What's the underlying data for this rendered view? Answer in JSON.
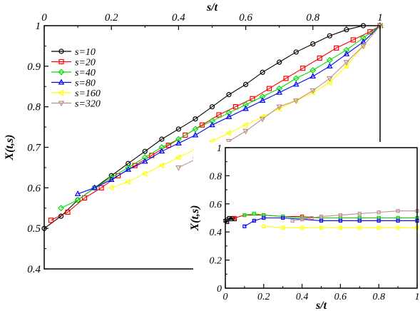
{
  "chart_data": [
    {
      "type": "scatter",
      "panel": "main",
      "xlabel": "s/t",
      "ylabel": "X(t,s)",
      "xlim": [
        0,
        1
      ],
      "ylim": [
        0.4,
        1
      ],
      "x_ticks": [
        "0",
        "0.2",
        "0.4",
        "0.6",
        "0.8",
        "1"
      ],
      "y_ticks": [
        "0.4",
        "0.5",
        "0.6",
        "0.7",
        "0.8",
        "0.9",
        "1"
      ],
      "x_axis_position": "top",
      "grid": false,
      "legend_position": "top-left",
      "series": [
        {
          "name": "s=10",
          "color": "#000000",
          "marker": "circle",
          "x": [
            0.0,
            0.05,
            0.1,
            0.15,
            0.2,
            0.25,
            0.3,
            0.35,
            0.4,
            0.45,
            0.5,
            0.55,
            0.6,
            0.65,
            0.7,
            0.75,
            0.8,
            0.85,
            0.9,
            0.95,
            1.0
          ],
          "y": [
            0.5,
            0.53,
            0.57,
            0.6,
            0.63,
            0.66,
            0.69,
            0.72,
            0.745,
            0.77,
            0.8,
            0.83,
            0.855,
            0.885,
            0.91,
            0.935,
            0.955,
            0.975,
            0.99,
            1.0,
            1.0
          ]
        },
        {
          "name": "s=20",
          "color": "#ff0000",
          "marker": "square",
          "x": [
            0.02,
            0.07,
            0.12,
            0.17,
            0.22,
            0.27,
            0.32,
            0.37,
            0.42,
            0.47,
            0.52,
            0.57,
            0.62,
            0.67,
            0.72,
            0.77,
            0.82,
            0.87,
            0.92,
            0.97,
            1.0
          ],
          "y": [
            0.52,
            0.54,
            0.575,
            0.6,
            0.63,
            0.655,
            0.68,
            0.705,
            0.73,
            0.755,
            0.78,
            0.8,
            0.82,
            0.845,
            0.87,
            0.895,
            0.92,
            0.945,
            0.965,
            0.985,
            1.0
          ]
        },
        {
          "name": "s=40",
          "color": "#00dd00",
          "marker": "diamond",
          "x": [
            0.05,
            0.1,
            0.15,
            0.2,
            0.25,
            0.3,
            0.35,
            0.4,
            0.45,
            0.5,
            0.55,
            0.6,
            0.65,
            0.7,
            0.75,
            0.8,
            0.85,
            0.9,
            0.95,
            1.0
          ],
          "y": [
            0.55,
            0.57,
            0.6,
            0.625,
            0.65,
            0.675,
            0.7,
            0.72,
            0.745,
            0.765,
            0.785,
            0.805,
            0.825,
            0.845,
            0.87,
            0.89,
            0.915,
            0.94,
            0.97,
            1.0
          ]
        },
        {
          "name": "s=80",
          "color": "#0000ff",
          "marker": "triangle-up",
          "x": [
            0.1,
            0.15,
            0.2,
            0.25,
            0.3,
            0.35,
            0.4,
            0.45,
            0.5,
            0.55,
            0.6,
            0.65,
            0.7,
            0.75,
            0.8,
            0.85,
            0.9,
            0.95,
            1.0
          ],
          "y": [
            0.585,
            0.6,
            0.62,
            0.645,
            0.665,
            0.69,
            0.71,
            0.73,
            0.755,
            0.775,
            0.795,
            0.815,
            0.835,
            0.855,
            0.875,
            0.9,
            0.93,
            0.96,
            1.0
          ]
        },
        {
          "name": "s=160",
          "color": "#ffff00",
          "marker": "triangle-left",
          "x": [
            0.2,
            0.25,
            0.3,
            0.35,
            0.4,
            0.45,
            0.5,
            0.55,
            0.6,
            0.65,
            0.7,
            0.75,
            0.8,
            0.85,
            0.9,
            0.95,
            1.0
          ],
          "y": [
            0.6,
            0.615,
            0.635,
            0.655,
            0.675,
            0.695,
            0.715,
            0.735,
            0.755,
            0.775,
            0.795,
            0.815,
            0.835,
            0.86,
            0.9,
            0.95,
            1.0
          ]
        },
        {
          "name": "s=320",
          "color": "#bc8f8f",
          "marker": "triangle-down",
          "x": [
            0.4,
            0.45,
            0.5,
            0.55,
            0.6,
            0.65,
            0.7,
            0.75,
            0.8,
            0.85,
            0.9,
            0.95,
            1.0
          ],
          "y": [
            0.65,
            0.67,
            0.69,
            0.715,
            0.74,
            0.77,
            0.8,
            0.815,
            0.84,
            0.87,
            0.91,
            0.95,
            1.0
          ]
        }
      ]
    },
    {
      "type": "scatter",
      "panel": "inset",
      "xlabel": "s/t",
      "ylabel": "X(t,s)",
      "xlim": [
        0,
        1
      ],
      "ylim": [
        0,
        1
      ],
      "x_ticks": [
        "0",
        "0.2",
        "0.4",
        "0.6",
        "0.8",
        "1"
      ],
      "y_ticks": [
        "0",
        "0.2",
        "0.4",
        "0.6",
        "0.8",
        "1"
      ],
      "legend_position": "none",
      "series": [
        {
          "color": "#000000",
          "x": [
            0.0,
            0.01,
            0.02,
            0.03,
            0.04,
            0.05
          ],
          "y": [
            0.48,
            0.47,
            0.5,
            0.49,
            0.5,
            0.49
          ]
        },
        {
          "color": "#ff0000",
          "x": [
            0.05,
            0.1,
            0.2,
            0.3,
            0.4,
            0.5,
            0.6,
            0.7,
            0.8,
            0.9,
            1.0
          ],
          "y": [
            0.5,
            0.52,
            0.52,
            0.51,
            0.51,
            0.5,
            0.5,
            0.5,
            0.5,
            0.5,
            0.5
          ]
        },
        {
          "color": "#00dd00",
          "x": [
            0.1,
            0.15,
            0.2,
            0.3,
            0.4,
            0.5,
            0.6,
            0.7,
            0.8,
            0.9,
            1.0
          ],
          "y": [
            0.52,
            0.53,
            0.52,
            0.51,
            0.5,
            0.5,
            0.5,
            0.5,
            0.5,
            0.5,
            0.5
          ]
        },
        {
          "color": "#0000ff",
          "x": [
            0.1,
            0.15,
            0.2,
            0.3,
            0.4,
            0.5,
            0.6,
            0.7,
            0.8,
            0.9,
            1.0
          ],
          "y": [
            0.44,
            0.48,
            0.5,
            0.5,
            0.49,
            0.48,
            0.48,
            0.48,
            0.48,
            0.48,
            0.48
          ]
        },
        {
          "color": "#ffff00",
          "x": [
            0.2,
            0.3,
            0.4,
            0.5,
            0.6,
            0.7,
            0.8,
            0.9,
            1.0
          ],
          "y": [
            0.44,
            0.43,
            0.43,
            0.43,
            0.43,
            0.43,
            0.43,
            0.43,
            0.43
          ]
        },
        {
          "color": "#bc8f8f",
          "x": [
            0.35,
            0.4,
            0.45,
            0.5,
            0.6,
            0.7,
            0.8,
            0.9,
            1.0
          ],
          "y": [
            0.48,
            0.49,
            0.5,
            0.51,
            0.52,
            0.53,
            0.54,
            0.55,
            0.55
          ]
        }
      ]
    }
  ]
}
